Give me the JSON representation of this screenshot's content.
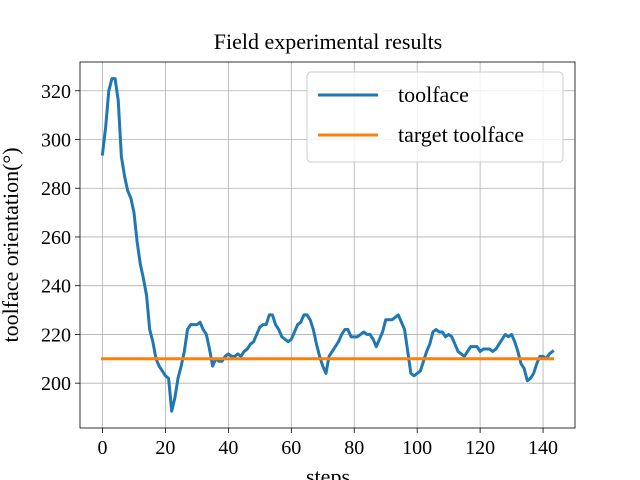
{
  "chart_data": {
    "type": "line",
    "title": "Field experimental results",
    "x_label": "steps",
    "y_label": "toolface orientation(°)",
    "x": [
      0,
      1,
      2,
      3,
      4,
      5,
      6,
      7,
      8,
      9,
      10,
      11,
      12,
      13,
      14,
      15,
      16,
      17,
      18,
      19,
      20,
      21,
      22,
      23,
      24,
      25,
      26,
      27,
      28,
      29,
      30,
      31,
      32,
      33,
      34,
      35,
      36,
      37,
      38,
      39,
      40,
      41,
      42,
      43,
      44,
      45,
      46,
      47,
      48,
      49,
      50,
      51,
      52,
      53,
      54,
      55,
      56,
      57,
      58,
      59,
      60,
      61,
      62,
      63,
      64,
      65,
      66,
      67,
      68,
      69,
      70,
      71,
      72,
      73,
      74,
      75,
      76,
      77,
      78,
      79,
      80,
      81,
      82,
      83,
      84,
      85,
      86,
      87,
      88,
      89,
      90,
      91,
      92,
      93,
      94,
      95,
      96,
      97,
      98,
      99,
      100,
      101,
      102,
      103,
      104,
      105,
      106,
      107,
      108,
      109,
      110,
      111,
      112,
      113,
      114,
      115,
      116,
      117,
      118,
      119,
      120,
      121,
      122,
      123,
      124,
      125,
      126,
      127,
      128,
      129,
      130,
      131,
      132,
      133,
      134,
      135,
      136,
      137,
      138,
      139,
      140,
      141,
      142,
      143
    ],
    "series": [
      {
        "name": "toolface",
        "color": "#1f77b4",
        "values": [
          294,
          305,
          320,
          325,
          325,
          316,
          293,
          285,
          279,
          276,
          270,
          258,
          249,
          243,
          236,
          222,
          217,
          210,
          207,
          205,
          203,
          202,
          188.5,
          194,
          202,
          207,
          213,
          222,
          224,
          224,
          224,
          225,
          222,
          220,
          214,
          207,
          210,
          209,
          209,
          211,
          212,
          211,
          211,
          212,
          211,
          213,
          214,
          216,
          217,
          220,
          223,
          224,
          224,
          228,
          228,
          224,
          222,
          219,
          218,
          217,
          218,
          221,
          224,
          225,
          228,
          228,
          226,
          222,
          216,
          211,
          207,
          204,
          211,
          213,
          215,
          217,
          220,
          222,
          222,
          219,
          219,
          219,
          220,
          221,
          220,
          220,
          218,
          215,
          218,
          221,
          226,
          226,
          226,
          227,
          228,
          225,
          222,
          213,
          204,
          203,
          204,
          205,
          209,
          213,
          216,
          221,
          222,
          221,
          221,
          219,
          220,
          219,
          216,
          213,
          212,
          211,
          213,
          215,
          215,
          215,
          213,
          214,
          214,
          214,
          213,
          214,
          216,
          218,
          220,
          219,
          220,
          217,
          213,
          208,
          206,
          201,
          202,
          204,
          208,
          211,
          211,
          210,
          212,
          213
        ]
      },
      {
        "name": "target toolface",
        "color": "#ff7f0e",
        "x": [
          0,
          143
        ],
        "values": [
          210,
          210
        ]
      }
    ],
    "xlim": [
      -7.15,
      150.15
    ],
    "ylim": [
      181.6,
      331.8
    ],
    "xticks": [
      0,
      20,
      40,
      60,
      80,
      100,
      120,
      140
    ],
    "yticks": [
      200,
      220,
      240,
      260,
      280,
      300,
      320
    ],
    "grid": true,
    "legend": "upper right"
  }
}
